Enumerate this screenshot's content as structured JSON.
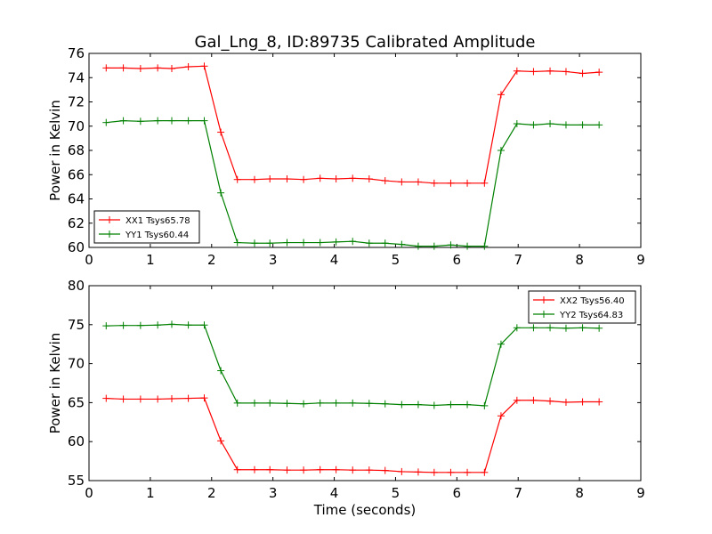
{
  "title": "Gal_Lng_8, ID:89735 Calibrated Amplitude",
  "xlabel": "Time (seconds)",
  "chart_data": [
    {
      "type": "line",
      "ylabel": "Power in Kelvin",
      "xlim": [
        0,
        9
      ],
      "ylim": [
        60,
        76
      ],
      "xticks": [
        0,
        1,
        2,
        3,
        4,
        5,
        6,
        7,
        8,
        9
      ],
      "yticks": [
        60,
        62,
        64,
        66,
        68,
        70,
        72,
        74,
        76
      ],
      "grid": false,
      "legend_position": "lower-left",
      "x": [
        0.28,
        0.56,
        0.84,
        1.12,
        1.35,
        1.62,
        1.88,
        2.15,
        2.42,
        2.7,
        2.95,
        3.23,
        3.5,
        3.77,
        4.03,
        4.3,
        4.57,
        4.83,
        5.1,
        5.37,
        5.63,
        5.9,
        6.17,
        6.45,
        6.72,
        6.98,
        7.25,
        7.52,
        7.78,
        8.05,
        8.32
      ],
      "series": [
        {
          "name": "XX1 Tsys65.78",
          "color": "#ff0000",
          "values": [
            74.8,
            74.8,
            74.75,
            74.8,
            74.75,
            74.9,
            74.95,
            69.5,
            65.6,
            65.6,
            65.65,
            65.65,
            65.6,
            65.7,
            65.65,
            65.7,
            65.65,
            65.5,
            65.4,
            65.4,
            65.3,
            65.3,
            65.3,
            65.3,
            72.6,
            74.55,
            74.5,
            74.55,
            74.5,
            74.35,
            74.45
          ]
        },
        {
          "name": "YY1 Tsys60.44",
          "color": "#008000",
          "values": [
            70.3,
            70.45,
            70.4,
            70.45,
            70.45,
            70.45,
            70.45,
            64.5,
            60.4,
            60.35,
            60.35,
            60.4,
            60.4,
            60.4,
            60.45,
            60.5,
            60.35,
            60.35,
            60.25,
            60.1,
            60.1,
            60.2,
            60.1,
            60.1,
            68.0,
            70.2,
            70.1,
            70.2,
            70.1,
            70.1,
            70.1
          ]
        }
      ]
    },
    {
      "type": "line",
      "ylabel": "Power in Kelvin",
      "xlabel": "Time (seconds)",
      "xlim": [
        0,
        9
      ],
      "ylim": [
        55,
        80
      ],
      "xticks": [
        0,
        1,
        2,
        3,
        4,
        5,
        6,
        7,
        8,
        9
      ],
      "yticks": [
        55,
        60,
        65,
        70,
        75,
        80
      ],
      "grid": false,
      "legend_position": "upper-right",
      "x": [
        0.28,
        0.56,
        0.84,
        1.12,
        1.35,
        1.62,
        1.88,
        2.15,
        2.42,
        2.7,
        2.95,
        3.23,
        3.5,
        3.77,
        4.03,
        4.3,
        4.57,
        4.83,
        5.1,
        5.37,
        5.63,
        5.9,
        6.17,
        6.45,
        6.72,
        6.98,
        7.25,
        7.52,
        7.78,
        8.05,
        8.32
      ],
      "series": [
        {
          "name": "XX2 Tsys56.40",
          "color": "#ff0000",
          "values": [
            65.55,
            65.45,
            65.45,
            65.45,
            65.5,
            65.55,
            65.6,
            60.1,
            56.4,
            56.4,
            56.4,
            56.35,
            56.35,
            56.4,
            56.4,
            56.35,
            56.35,
            56.3,
            56.15,
            56.1,
            56.05,
            56.05,
            56.05,
            56.05,
            63.3,
            65.3,
            65.3,
            65.2,
            65.05,
            65.1,
            65.1
          ]
        },
        {
          "name": "YY2 Tsys64.83",
          "color": "#008000",
          "values": [
            74.85,
            74.9,
            74.9,
            74.95,
            75.05,
            74.95,
            74.95,
            69.1,
            64.95,
            64.95,
            64.95,
            64.9,
            64.85,
            64.95,
            64.95,
            64.95,
            64.9,
            64.85,
            64.75,
            64.75,
            64.65,
            64.75,
            64.75,
            64.6,
            72.5,
            74.6,
            74.6,
            74.6,
            74.55,
            74.6,
            74.55
          ]
        }
      ]
    }
  ]
}
